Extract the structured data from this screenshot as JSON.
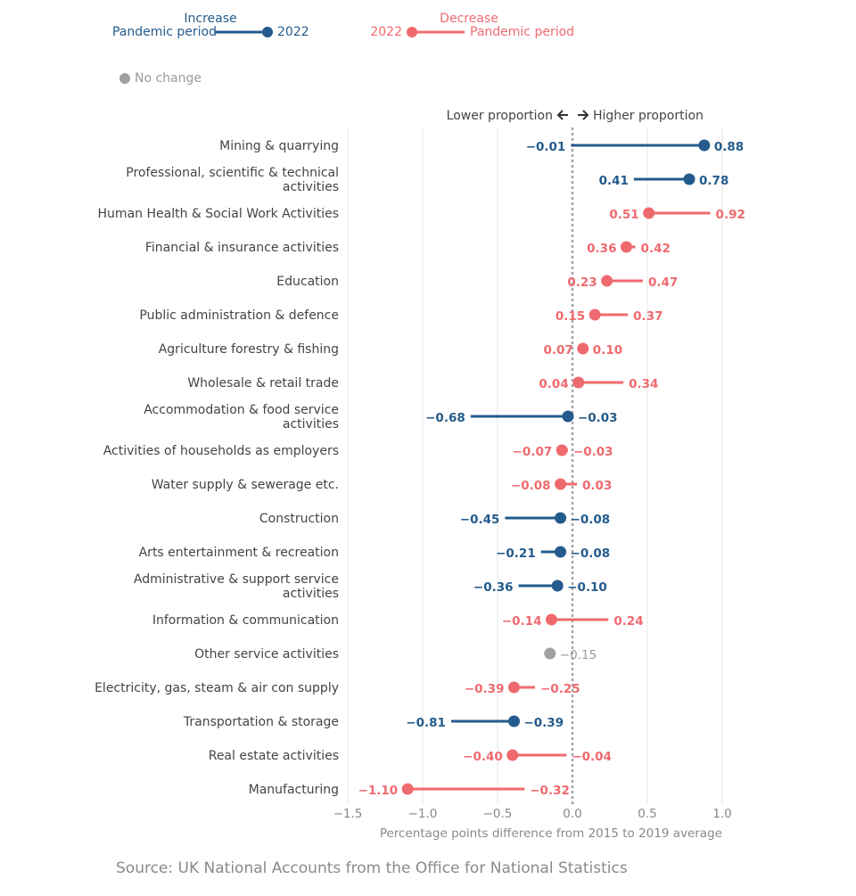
{
  "chart_data": {
    "type": "dumbbell",
    "xlabel": "Percentage points difference from 2015 to 2019 average",
    "xlim": [
      -1.5,
      1.0
    ],
    "xticks": [
      -1.5,
      -1.0,
      -0.5,
      0.0,
      0.5,
      1.0
    ],
    "xtick_labels": [
      "−1.5",
      "−1.0",
      "−0.5",
      "0.0",
      "0.5",
      "1.0"
    ],
    "direction_label_left": "Lower proportion",
    "direction_label_right": "Higher proportion",
    "grid": true,
    "colors": {
      "increase": "#245b8c",
      "decrease": "#ef6a6e",
      "no_change": "#a0a0a0",
      "axis": "#9a9a9a"
    },
    "categories": [
      {
        "name": "Mining & quarrying",
        "lines": [
          "Mining & quarrying"
        ],
        "pandemic": -0.01,
        "y2022": 0.88,
        "status": "increase",
        "pandemic_label": "−0.01",
        "y2022_label": "0.88"
      },
      {
        "name": "Professional, scientific & technical activities",
        "lines": [
          "Professional, scientific & technical",
          "activities"
        ],
        "pandemic": 0.41,
        "y2022": 0.78,
        "status": "increase",
        "pandemic_label": "0.41",
        "y2022_label": "0.78"
      },
      {
        "name": "Human Health & Social Work Activities",
        "lines": [
          "Human Health & Social Work Activities"
        ],
        "pandemic": 0.92,
        "y2022": 0.51,
        "status": "decrease",
        "pandemic_label": "0.92",
        "y2022_label": "0.51"
      },
      {
        "name": "Financial & insurance activities",
        "lines": [
          "Financial & insurance activities"
        ],
        "pandemic": 0.42,
        "y2022": 0.36,
        "status": "decrease",
        "pandemic_label": "0.42",
        "y2022_label": "0.36"
      },
      {
        "name": "Education",
        "lines": [
          "Education"
        ],
        "pandemic": 0.47,
        "y2022": 0.23,
        "status": "decrease",
        "pandemic_label": "0.47",
        "y2022_label": "0.23"
      },
      {
        "name": "Public administration & defence",
        "lines": [
          "Public administration & defence"
        ],
        "pandemic": 0.37,
        "y2022": 0.15,
        "status": "decrease",
        "pandemic_label": "0.37",
        "y2022_label": "0.15"
      },
      {
        "name": "Agriculture forestry & fishing",
        "lines": [
          "Agriculture forestry & fishing"
        ],
        "pandemic": 0.1,
        "y2022": 0.07,
        "status": "decrease",
        "pandemic_label": "0.10",
        "y2022_label": "0.07"
      },
      {
        "name": "Wholesale & retail trade",
        "lines": [
          "Wholesale & retail trade"
        ],
        "pandemic": 0.34,
        "y2022": 0.04,
        "status": "decrease",
        "pandemic_label": "0.34",
        "y2022_label": "0.04"
      },
      {
        "name": "Accommodation & food service activities",
        "lines": [
          "Accommodation & food service",
          "activities"
        ],
        "pandemic": -0.68,
        "y2022": -0.03,
        "status": "increase",
        "pandemic_label": "−0.68",
        "y2022_label": "−0.03"
      },
      {
        "name": "Activities of households as employers",
        "lines": [
          "Activities of households as employers"
        ],
        "pandemic": -0.03,
        "y2022": -0.07,
        "status": "decrease",
        "pandemic_label": "−0.03",
        "y2022_label": "−0.07"
      },
      {
        "name": "Water supply & sewerage etc.",
        "lines": [
          "Water supply & sewerage etc."
        ],
        "pandemic": 0.03,
        "y2022": -0.08,
        "status": "decrease",
        "pandemic_label": "0.03",
        "y2022_label": "−0.08"
      },
      {
        "name": "Construction",
        "lines": [
          "Construction"
        ],
        "pandemic": -0.45,
        "y2022": -0.08,
        "status": "increase",
        "pandemic_label": "−0.45",
        "y2022_label": "−0.08"
      },
      {
        "name": "Arts entertainment & recreation",
        "lines": [
          "Arts entertainment & recreation"
        ],
        "pandemic": -0.21,
        "y2022": -0.08,
        "status": "increase",
        "pandemic_label": "−0.21",
        "y2022_label": "−0.08"
      },
      {
        "name": "Administrative & support service activities",
        "lines": [
          "Administrative & support service",
          "activities"
        ],
        "pandemic": -0.36,
        "y2022": -0.1,
        "status": "increase",
        "pandemic_label": "−0.36",
        "y2022_label": "−0.10"
      },
      {
        "name": "Information & communication",
        "lines": [
          "Information & communication"
        ],
        "pandemic": 0.24,
        "y2022": -0.14,
        "status": "decrease",
        "pandemic_label": "0.24",
        "y2022_label": "−0.14"
      },
      {
        "name": "Other service activities",
        "lines": [
          "Other service activities"
        ],
        "pandemic": -0.15,
        "y2022": -0.15,
        "status": "no_change",
        "pandemic_label": "",
        "y2022_label": "−0.15"
      },
      {
        "name": "Electricity, gas, steam & air con supply",
        "lines": [
          "Electricity, gas, steam & air con supply"
        ],
        "pandemic": -0.25,
        "y2022": -0.39,
        "status": "decrease",
        "pandemic_label": "−0.25",
        "y2022_label": "−0.39"
      },
      {
        "name": "Transportation & storage",
        "lines": [
          "Transportation & storage"
        ],
        "pandemic": -0.81,
        "y2022": -0.39,
        "status": "increase",
        "pandemic_label": "−0.81",
        "y2022_label": "−0.39"
      },
      {
        "name": "Real estate activities",
        "lines": [
          "Real estate activities"
        ],
        "pandemic": -0.04,
        "y2022": -0.4,
        "status": "decrease",
        "pandemic_label": "−0.04",
        "y2022_label": "−0.40"
      },
      {
        "name": "Manufacturing",
        "lines": [
          "Manufacturing"
        ],
        "pandemic": -0.32,
        "y2022": -1.1,
        "status": "decrease",
        "pandemic_label": "−0.32",
        "y2022_label": "−1.10"
      }
    ]
  },
  "legend": {
    "increase_title": "Increase",
    "decrease_title": "Decrease",
    "pandemic_label": "Pandemic period",
    "year_label": "2022",
    "no_change_label": "No change"
  },
  "source": "Source: UK National Accounts from the Office for National Statistics"
}
